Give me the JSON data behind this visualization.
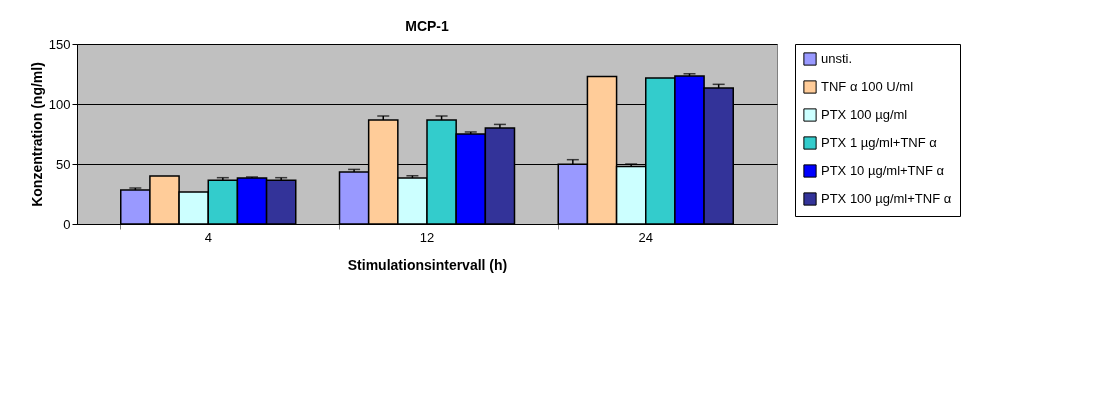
{
  "chart_data": {
    "type": "bar",
    "title": "MCP-1",
    "xlabel": "Stimulationsintervall (h)",
    "ylabel": "Konzentration (ng/ml)",
    "categories": [
      "4",
      "12",
      "24"
    ],
    "series": [
      {
        "name": "unsti.",
        "color": "#9999ff",
        "values": [
          28.3,
          43.3,
          49.7
        ],
        "errors": [
          [
            28.3,
            30
          ],
          [
            43.3,
            45.5
          ],
          [
            49.7,
            53.6
          ]
        ]
      },
      {
        "name": "TNF α 100 U/ml",
        "color": "#ffcc99",
        "values": [
          40,
          86.7,
          123
        ],
        "errors": [
          null,
          [
            86.7,
            90
          ],
          null
        ]
      },
      {
        "name": "PTX 100 µg/ml",
        "color": "#ccffff",
        "values": [
          26.7,
          38.3,
          48
        ],
        "errors": [
          null,
          [
            38.3,
            40.2
          ],
          [
            48,
            50
          ]
        ]
      },
      {
        "name": "PTX 1 µg/ml+TNF α",
        "color": "#33cccc",
        "values": [
          36.4,
          86.7,
          121.7
        ],
        "errors": [
          [
            36.4,
            38.6
          ],
          [
            86.7,
            90
          ],
          null
        ]
      },
      {
        "name": "PTX 10 µg/ml+TNF α",
        "color": "#0000ff",
        "values": [
          38.3,
          75,
          123.3
        ],
        "errors": [
          [
            38.3,
            39.2
          ],
          [
            75,
            76.7
          ],
          [
            123.3,
            125.2
          ]
        ]
      },
      {
        "name": "PTX 100 µg/ml+TNF α",
        "color": "#333399",
        "values": [
          36.4,
          80,
          113.3
        ],
        "errors": [
          [
            36.4,
            38.6
          ],
          [
            80,
            83
          ],
          [
            113.3,
            116.4
          ]
        ]
      }
    ],
    "ylim": [
      0,
      150
    ],
    "yticks": [
      0,
      50,
      100,
      150
    ],
    "grid": "y",
    "legend": "right"
  }
}
